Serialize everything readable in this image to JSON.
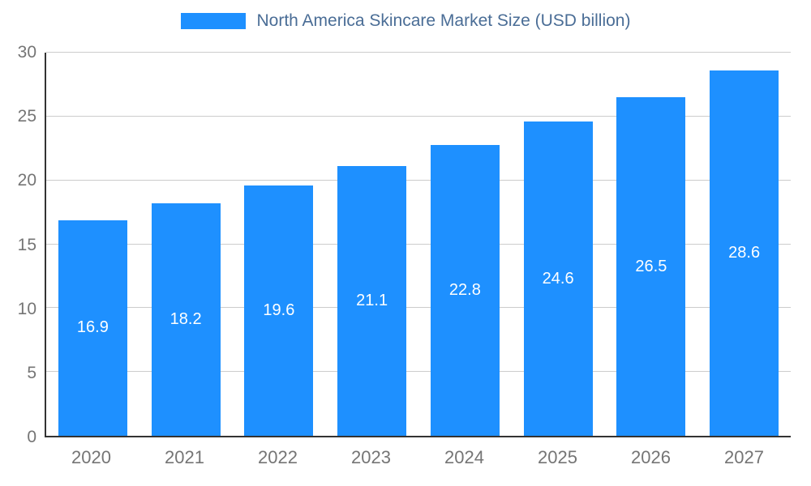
{
  "chart_data": {
    "type": "bar",
    "title": "North America Skincare Market Size (USD billion)",
    "categories": [
      "2020",
      "2021",
      "2022",
      "2023",
      "2024",
      "2025",
      "2026",
      "2027"
    ],
    "values": [
      16.9,
      18.2,
      19.6,
      21.1,
      22.8,
      24.6,
      26.5,
      28.6
    ],
    "value_labels": [
      "16.9",
      "18.2",
      "19.6",
      "21.1",
      "22.8",
      "24.6",
      "26.5",
      "28.6"
    ],
    "xlabel": "",
    "ylabel": "",
    "ylim": [
      0,
      30
    ],
    "yticks": [
      0,
      5,
      10,
      15,
      20,
      25,
      30
    ],
    "grid": true,
    "legend_position": "top",
    "colors": {
      "bar": "#1E90FF",
      "legend_text": "#4a6d96",
      "axis_text": "#757575",
      "gridline": "#cccccc",
      "axis_line": "#333333",
      "value_label": "#ffffff",
      "background": "#ffffff"
    }
  }
}
